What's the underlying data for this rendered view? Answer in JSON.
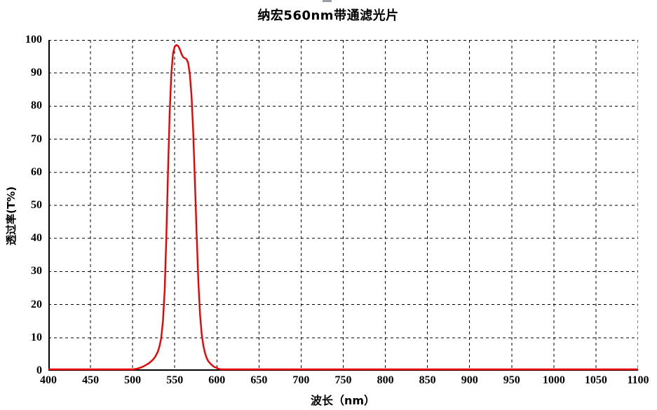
{
  "page": {
    "background": "#ffffff",
    "artifact_color": "#9aa0a6"
  },
  "chart_data": {
    "type": "line",
    "title": "纳宏560nm带通滤光片",
    "xlabel": "波长（nm）",
    "ylabel": "透过率(T%)",
    "xlim": [
      400,
      1100
    ],
    "ylim": [
      0,
      100
    ],
    "x_ticks": [
      400,
      450,
      500,
      550,
      600,
      650,
      700,
      750,
      800,
      850,
      900,
      950,
      1000,
      1050,
      1100
    ],
    "y_ticks": [
      0,
      10,
      20,
      30,
      40,
      50,
      60,
      70,
      80,
      90,
      100
    ],
    "grid": "dashed",
    "legend_position": "none",
    "series": [
      {
        "name": "透过率",
        "color": "#ee0000",
        "points": [
          [
            400,
            0
          ],
          [
            460,
            0
          ],
          [
            480,
            0.1
          ],
          [
            490,
            0.2
          ],
          [
            500,
            0.4
          ],
          [
            505,
            0.6
          ],
          [
            510,
            1.0
          ],
          [
            515,
            1.6
          ],
          [
            520,
            2.4
          ],
          [
            524,
            3.3
          ],
          [
            527,
            4.3
          ],
          [
            530,
            5.8
          ],
          [
            532,
            7.5
          ],
          [
            534,
            10
          ],
          [
            536,
            15
          ],
          [
            538,
            24
          ],
          [
            540,
            40
          ],
          [
            542,
            60
          ],
          [
            544,
            78
          ],
          [
            546,
            90
          ],
          [
            548,
            96
          ],
          [
            550,
            98
          ],
          [
            552,
            98.5
          ],
          [
            554,
            98.2
          ],
          [
            556,
            97.2
          ],
          [
            558,
            95.8
          ],
          [
            560,
            94.8
          ],
          [
            562,
            94.5
          ],
          [
            564,
            94.2
          ],
          [
            566,
            93
          ],
          [
            568,
            89.5
          ],
          [
            570,
            83
          ],
          [
            572,
            72
          ],
          [
            574,
            57
          ],
          [
            576,
            41
          ],
          [
            578,
            27
          ],
          [
            580,
            17
          ],
          [
            582,
            11
          ],
          [
            584,
            7.5
          ],
          [
            586,
            5.3
          ],
          [
            588,
            3.8
          ],
          [
            590,
            2.8
          ],
          [
            593,
            2.0
          ],
          [
            596,
            1.3
          ],
          [
            600,
            0.8
          ],
          [
            604,
            0.4
          ],
          [
            608,
            0.15
          ],
          [
            613,
            0
          ],
          [
            650,
            0
          ],
          [
            700,
            0
          ],
          [
            750,
            0
          ],
          [
            800,
            0
          ],
          [
            850,
            0
          ],
          [
            900,
            0
          ],
          [
            950,
            0
          ],
          [
            1000,
            0
          ],
          [
            1050,
            0
          ],
          [
            1100,
            0
          ]
        ]
      }
    ]
  }
}
